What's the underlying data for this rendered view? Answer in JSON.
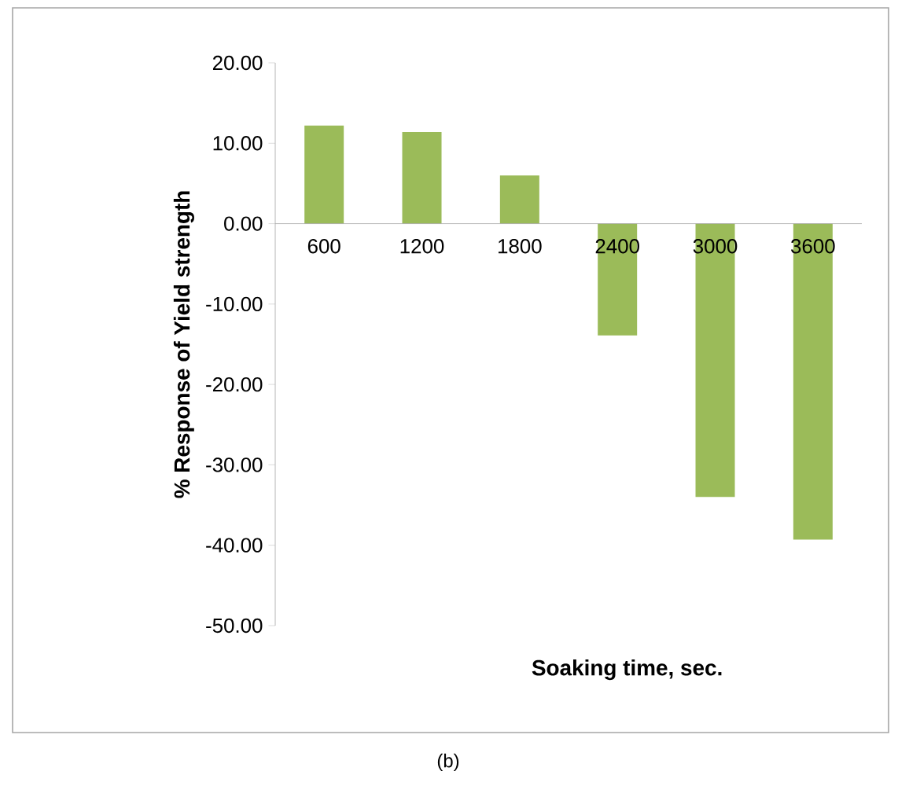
{
  "chart_data": {
    "type": "bar",
    "xlabel": "Soaking time, sec.",
    "ylabel": "% Response of Yield strength",
    "categories": [
      "600",
      "1200",
      "1800",
      "2400",
      "3000",
      "3600"
    ],
    "values": [
      12.2,
      11.4,
      6.0,
      -13.9,
      -34.0,
      -39.3
    ],
    "color": "#9bbb59",
    "ylim": [
      -50,
      20
    ],
    "yticks": [
      {
        "value": 20,
        "label": "20.00"
      },
      {
        "value": 10,
        "label": "10.00"
      },
      {
        "value": 0,
        "label": "0.00"
      },
      {
        "value": -10,
        "label": "-10.00"
      },
      {
        "value": -20,
        "label": "-20.00"
      },
      {
        "value": -30,
        "label": "-30.00"
      },
      {
        "value": -40,
        "label": "-40.00"
      },
      {
        "value": -50,
        "label": "-50.00"
      }
    ],
    "grid": false,
    "annotations": [
      "(b)"
    ]
  }
}
